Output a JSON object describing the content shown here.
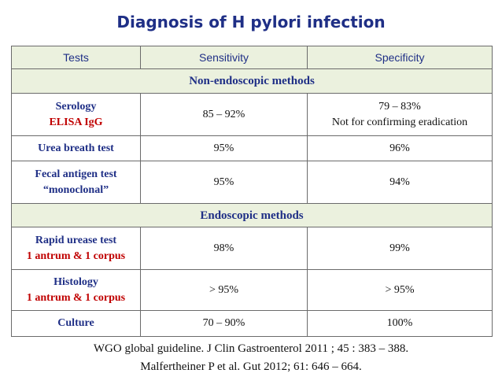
{
  "header": {
    "title": "Diagnosis of H pylori infection"
  },
  "table": {
    "columns": [
      "Tests",
      "Sensitivity",
      "Specificity"
    ],
    "rows": [
      {
        "section": "Non-endoscopic methods"
      },
      {
        "test": [
          "Serology"
        ],
        "test_note": "ELISA IgG",
        "sensitivity": "85 – 92%",
        "specificity": [
          "79 – 83%",
          "Not for confirming eradication"
        ]
      },
      {
        "test": [
          "Urea breath test"
        ],
        "sensitivity": "95%",
        "specificity": [
          "96%"
        ]
      },
      {
        "test": [
          "Fecal antigen test",
          "“monoclonal”"
        ],
        "sensitivity": "95%",
        "specificity": [
          "94%"
        ]
      },
      {
        "section": "Endoscopic methods"
      },
      {
        "test": [
          "Rapid urease test"
        ],
        "test_note": "1 antrum & 1 corpus",
        "sensitivity": "98%",
        "specificity": [
          "99%"
        ]
      },
      {
        "test": [
          "Histology"
        ],
        "test_note": "1 antrum & 1 corpus",
        "sensitivity": "> 95%",
        "specificity": [
          "> 95%"
        ]
      },
      {
        "test": [
          "Culture"
        ],
        "sensitivity": "70 – 90%",
        "specificity": [
          "100%"
        ]
      }
    ]
  },
  "footer": {
    "references": [
      "WGO global guideline. J Clin Gastroenterol  2011 ; 45 : 383 – 388.",
      "Malfertheiner P et al. Gut 2012; 61: 646 – 664."
    ]
  }
}
